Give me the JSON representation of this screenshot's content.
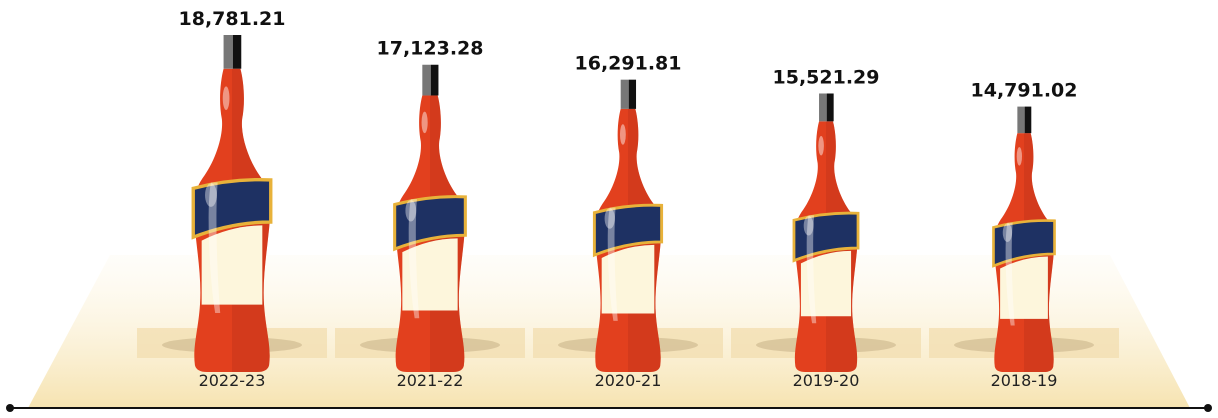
{
  "chart_data": {
    "type": "bottle",
    "categories": [
      "2022-23",
      "2021-22",
      "2020-21",
      "2019-20",
      "2018-19"
    ],
    "values": [
      18781.21,
      17123.28,
      16291.81,
      15521.29,
      14791.02
    ],
    "value_labels": [
      "18,781.21",
      "17,123.28",
      "16,291.81",
      "15,521.29",
      "14,791.02"
    ],
    "color": "#e2401e"
  }
}
